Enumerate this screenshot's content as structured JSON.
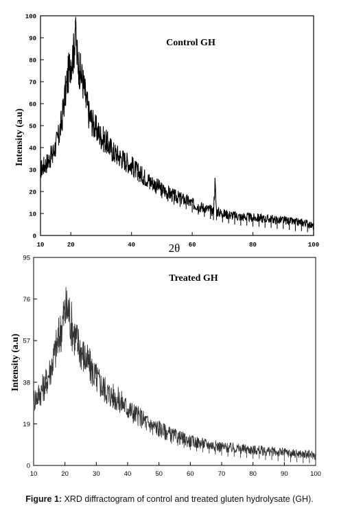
{
  "caption": {
    "label": "Figure 1:",
    "text": " XRD diffractogram of control and treated gluten hydrolysate (GH)."
  },
  "chart_data": [
    {
      "type": "line",
      "title": "Control GH",
      "xlabel": "2θ",
      "ylabel": "Intensity (a.u)",
      "xlim": [
        10,
        100
      ],
      "ylim": [
        0,
        100
      ],
      "x_ticks": [
        "10",
        "20",
        "40",
        "60",
        "80",
        "100"
      ],
      "x_tick_values": [
        10,
        20,
        40,
        60,
        80,
        100
      ],
      "y_ticks": [
        "0",
        "10",
        "20",
        "30",
        "40",
        "50",
        "60",
        "70",
        "80",
        "90",
        "100"
      ],
      "y_tick_values": [
        0,
        10,
        20,
        30,
        40,
        50,
        60,
        70,
        80,
        90,
        100
      ],
      "series": [
        {
          "x": [
            10,
            12,
            14,
            16,
            17,
            18,
            19,
            20,
            21,
            21.5,
            22,
            23,
            24,
            25,
            26,
            28,
            30,
            32,
            34,
            36,
            38,
            40,
            42,
            44,
            46,
            48,
            50,
            52,
            54,
            56,
            58,
            60,
            62,
            64,
            66,
            67,
            67.5,
            68,
            70,
            72,
            74,
            76,
            78,
            80,
            82,
            84,
            86,
            88,
            90,
            92,
            94,
            96,
            98,
            100
          ],
          "y": [
            30,
            33,
            37,
            45,
            52,
            63,
            72,
            80,
            83,
            98,
            82,
            75,
            70,
            62,
            55,
            49,
            45,
            42,
            38,
            36,
            34,
            32,
            29,
            27,
            25,
            23,
            21,
            19.5,
            18,
            17,
            16,
            14.5,
            13.5,
            12.5,
            11.5,
            11,
            24,
            11,
            10,
            9.5,
            9,
            8.5,
            8.5,
            8,
            8,
            7.5,
            7.5,
            7,
            7,
            6.5,
            6,
            6,
            5.5,
            4
          ]
        }
      ]
    },
    {
      "type": "line",
      "title": "Treated GH",
      "xlabel": "2θ",
      "ylabel": "Intensity (a.u)",
      "xlim": [
        10,
        100
      ],
      "ylim": [
        0,
        95
      ],
      "x_ticks": [
        "10",
        "20",
        "30",
        "40",
        "50",
        "60",
        "70",
        "80",
        "90",
        "100"
      ],
      "x_tick_values": [
        10,
        20,
        30,
        40,
        50,
        60,
        70,
        80,
        90,
        100
      ],
      "y_ticks": [
        "0",
        "19",
        "38",
        "57",
        "76",
        "95"
      ],
      "y_tick_values": [
        0,
        19,
        38,
        57,
        76,
        95
      ],
      "series": [
        {
          "x": [
            10,
            12,
            14,
            16,
            18,
            19,
            20,
            21,
            22,
            23,
            24,
            26,
            28,
            30,
            32,
            34,
            36,
            38,
            40,
            42,
            44,
            46,
            48,
            50,
            52,
            54,
            56,
            58,
            60,
            62,
            64,
            66,
            68,
            70,
            72,
            74,
            76,
            78,
            80,
            82,
            84,
            86,
            88,
            90,
            92,
            94,
            96,
            98,
            100
          ],
          "y": [
            30,
            33,
            38,
            47,
            58,
            64,
            70,
            72,
            65,
            60,
            56,
            50,
            45,
            40,
            36,
            33,
            31,
            29,
            26,
            24,
            22,
            20,
            18,
            17,
            15.5,
            14,
            13,
            12,
            11,
            10.5,
            10,
            9.5,
            9,
            8.5,
            8,
            8,
            7.5,
            7.5,
            7,
            7,
            6.5,
            6.5,
            6,
            6,
            5.5,
            5.5,
            5,
            5,
            4.5
          ]
        }
      ]
    }
  ]
}
